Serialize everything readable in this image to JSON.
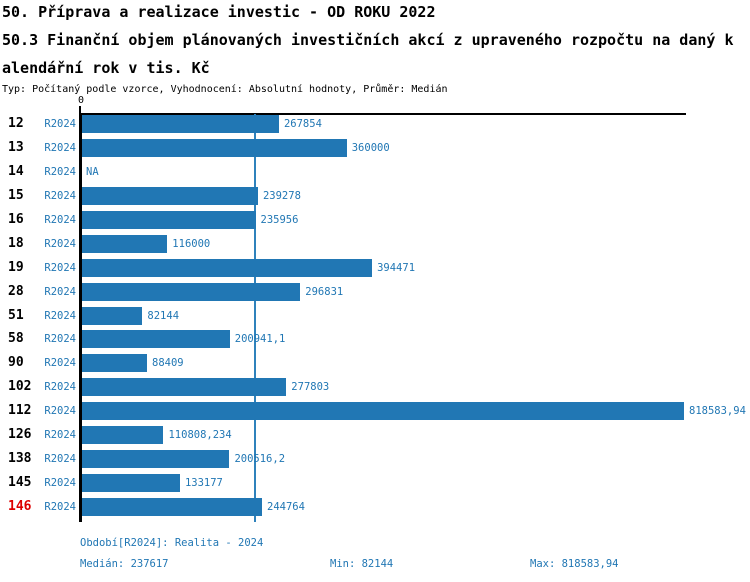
{
  "title": {
    "line1": "50. Příprava a realizace investic - OD ROKU 2022",
    "line2": "50.3 Finanční objem plánovaných investičních akcí z upraveného rozpočtu na daný k",
    "line3": "alendářní rok v tis. Kč",
    "meta": "Typ: Počítaný podle vzorce, Vyhodnocení: Absolutní hodnoty, Průměr: Medián"
  },
  "colors": {
    "bar": "#2177B4",
    "text_blue": "#2177B4",
    "median_line": "#2F82BC",
    "highlight_red": "#DD0000",
    "axis_black": "#000000",
    "background": "#FFFFFF"
  },
  "chart_data": {
    "type": "bar",
    "orientation": "horizontal",
    "title": "50.3 Finanční objem plánovaných investičních akcí z upraveného rozpočtu na daný kalendářní rok v tis. Kč",
    "xlabel": "",
    "ylabel": "",
    "xlim": [
      0,
      818583.94
    ],
    "x_axis_zero_label": "0",
    "grid": false,
    "median_value": 237617,
    "series_name": "R2024",
    "categories": [
      "12",
      "13",
      "14",
      "15",
      "16",
      "18",
      "19",
      "28",
      "51",
      "58",
      "90",
      "102",
      "112",
      "126",
      "138",
      "145",
      "146"
    ],
    "rows": [
      {
        "category": "12",
        "period": "R2024",
        "value": 267854,
        "label": "267854",
        "highlight": false
      },
      {
        "category": "13",
        "period": "R2024",
        "value": 360000,
        "label": "360000",
        "highlight": false
      },
      {
        "category": "14",
        "period": "R2024",
        "value": null,
        "label": "NA",
        "highlight": false
      },
      {
        "category": "15",
        "period": "R2024",
        "value": 239278,
        "label": "239278",
        "highlight": false
      },
      {
        "category": "16",
        "period": "R2024",
        "value": 235956,
        "label": "235956",
        "highlight": false
      },
      {
        "category": "18",
        "period": "R2024",
        "value": 116000,
        "label": "116000",
        "highlight": false
      },
      {
        "category": "19",
        "period": "R2024",
        "value": 394471,
        "label": "394471",
        "highlight": false
      },
      {
        "category": "28",
        "period": "R2024",
        "value": 296831,
        "label": "296831",
        "highlight": false
      },
      {
        "category": "51",
        "period": "R2024",
        "value": 82144,
        "label": "82144",
        "highlight": false
      },
      {
        "category": "58",
        "period": "R2024",
        "value": 200941.1,
        "label": "200941,1",
        "highlight": false
      },
      {
        "category": "90",
        "period": "R2024",
        "value": 88409,
        "label": "88409",
        "highlight": false
      },
      {
        "category": "102",
        "period": "R2024",
        "value": 277803,
        "label": "277803",
        "highlight": false
      },
      {
        "category": "112",
        "period": "R2024",
        "value": 818583.94,
        "label": "818583,94",
        "highlight": false
      },
      {
        "category": "126",
        "period": "R2024",
        "value": 110808.234,
        "label": "110808,234",
        "highlight": false
      },
      {
        "category": "138",
        "period": "R2024",
        "value": 200516.2,
        "label": "200516,2",
        "highlight": false
      },
      {
        "category": "145",
        "period": "R2024",
        "value": 133177,
        "label": "133177",
        "highlight": false
      },
      {
        "category": "146",
        "period": "R2024",
        "value": 244764,
        "label": "244764",
        "highlight": true
      }
    ]
  },
  "footer": {
    "period_info": "Období[R2024]: Realita - 2024",
    "median": "Medián: 237617",
    "min": "Min: 82144",
    "max": "Max: 818583,94"
  }
}
